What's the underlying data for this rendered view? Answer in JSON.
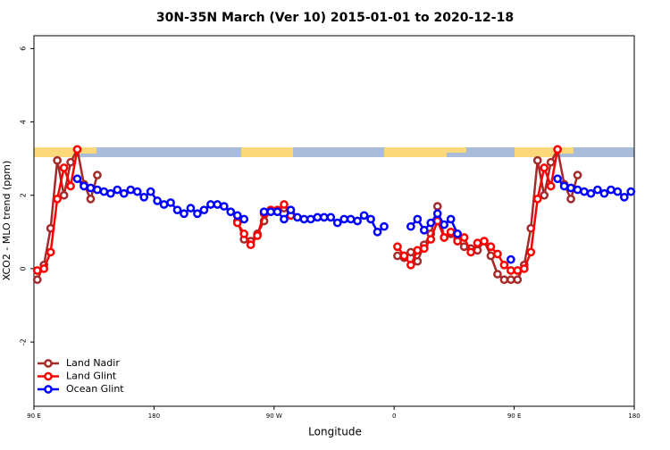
{
  "chart_data": {
    "type": "line",
    "title": "30N-35N March (Ver 10)   2015-01-01 to 2020-12-18",
    "xlabel": "Longitude",
    "ylabel": "XCO2 - MLO trend (ppm)",
    "x": [
      92.5,
      97.5,
      102.5,
      107.5,
      112.5,
      117.5,
      122.5,
      127.5,
      132.5,
      137.5,
      142.5,
      147.5,
      152.5,
      157.5,
      162.5,
      167.5,
      172.5,
      177.5,
      182.5,
      187.5,
      192.5,
      197.5,
      202.5,
      207.5,
      212.5,
      217.5,
      222.5,
      227.5,
      232.5,
      237.5,
      242.5,
      247.5,
      252.5,
      257.5,
      262.5,
      267.5,
      272.5,
      277.5,
      282.5,
      287.5,
      292.5,
      297.5,
      302.5,
      307.5,
      312.5,
      317.5,
      322.5,
      327.5,
      332.5,
      337.5,
      342.5,
      347.5,
      352.5,
      357.5,
      362.5,
      367.5,
      372.5,
      377.5,
      382.5,
      387.5,
      392.5,
      397.5,
      402.5,
      407.5,
      412.5,
      417.5,
      422.5,
      427.5,
      432.5,
      437.5,
      442.5,
      447.5,
      452.5,
      457.5,
      462.5,
      467.5,
      472.5,
      477.5,
      482.5,
      487.5,
      492.5,
      497.5,
      502.5,
      507.5,
      512.5,
      517.5,
      522.5,
      527.5,
      532.5,
      537.5
    ],
    "series": [
      {
        "name": "Land Nadir",
        "color": "#a52a2a",
        "values": [
          -0.3,
          0.1,
          1.1,
          2.95,
          2.0,
          2.9,
          3.25,
          2.3,
          1.9,
          2.55,
          null,
          null,
          null,
          null,
          null,
          null,
          null,
          null,
          null,
          null,
          null,
          null,
          null,
          null,
          null,
          null,
          null,
          null,
          null,
          null,
          1.3,
          0.8,
          0.75,
          0.95,
          1.3,
          1.6,
          1.55,
          1.65,
          1.55,
          null,
          null,
          null,
          null,
          null,
          null,
          null,
          null,
          null,
          null,
          null,
          null,
          null,
          null,
          null,
          0.35,
          0.3,
          0.45,
          0.2,
          0.65,
          0.95,
          1.7,
          0.85,
          0.95,
          0.8,
          0.6,
          0.55,
          0.5,
          0.75,
          0.35,
          -0.15,
          -0.3,
          -0.3,
          -0.3,
          0.1,
          1.1,
          2.95,
          2.0,
          2.9,
          3.25,
          2.3,
          1.9,
          2.55,
          null,
          null,
          null,
          null,
          null,
          null,
          null,
          null
        ]
      },
      {
        "name": "Land Glint",
        "color": "#ff0000",
        "values": [
          -0.05,
          0.0,
          0.45,
          1.9,
          2.75,
          2.25,
          3.25,
          null,
          null,
          null,
          null,
          null,
          null,
          null,
          null,
          null,
          null,
          null,
          null,
          null,
          null,
          null,
          null,
          null,
          null,
          null,
          null,
          null,
          null,
          null,
          1.25,
          0.95,
          0.65,
          0.9,
          1.5,
          1.6,
          1.6,
          1.75,
          1.45,
          null,
          null,
          null,
          null,
          null,
          null,
          null,
          null,
          null,
          null,
          null,
          null,
          null,
          null,
          null,
          0.6,
          0.35,
          0.1,
          0.5,
          0.55,
          0.8,
          1.3,
          0.85,
          1.0,
          0.75,
          0.85,
          0.45,
          0.7,
          0.75,
          0.6,
          0.4,
          0.1,
          -0.05,
          -0.05,
          0.0,
          0.45,
          1.9,
          2.75,
          2.25,
          3.25,
          null,
          null,
          null,
          null,
          null,
          null,
          null,
          null,
          null,
          null,
          null
        ]
      },
      {
        "name": "Ocean Glint",
        "color": "#0000ff",
        "values": [
          null,
          null,
          null,
          null,
          null,
          null,
          2.45,
          2.25,
          2.2,
          2.15,
          2.1,
          2.05,
          2.15,
          2.05,
          2.15,
          2.1,
          1.95,
          2.1,
          1.85,
          1.75,
          1.8,
          1.6,
          1.5,
          1.65,
          1.5,
          1.6,
          1.75,
          1.75,
          1.7,
          1.55,
          1.45,
          1.35,
          null,
          null,
          1.55,
          1.55,
          1.55,
          1.35,
          1.6,
          1.4,
          1.35,
          1.35,
          1.4,
          1.4,
          1.4,
          1.25,
          1.35,
          1.35,
          1.3,
          1.45,
          1.35,
          1.0,
          1.15,
          null,
          null,
          null,
          1.15,
          1.35,
          1.05,
          1.25,
          1.5,
          1.2,
          1.35,
          0.95,
          null,
          null,
          null,
          null,
          null,
          null,
          null,
          0.25,
          null,
          null,
          null,
          null,
          null,
          null,
          2.45,
          2.25,
          2.2,
          2.15,
          2.1,
          2.05,
          2.15,
          2.05,
          2.15,
          2.1,
          1.95,
          2.1
        ]
      }
    ],
    "xlim": [
      90,
      540
    ],
    "xticks": [
      {
        "value": 90,
        "label": "90 E"
      },
      180,
      {
        "value": 270,
        "label": "90 W"
      },
      {
        "value": 360,
        "label": "0"
      },
      {
        "value": 450,
        "label": "90 E"
      },
      {
        "value": 540,
        "label": "180"
      }
    ],
    "ylim": [
      -3.75,
      6.35
    ],
    "yticks": [
      -2,
      0,
      2,
      4,
      6
    ],
    "legend": "lower left"
  }
}
